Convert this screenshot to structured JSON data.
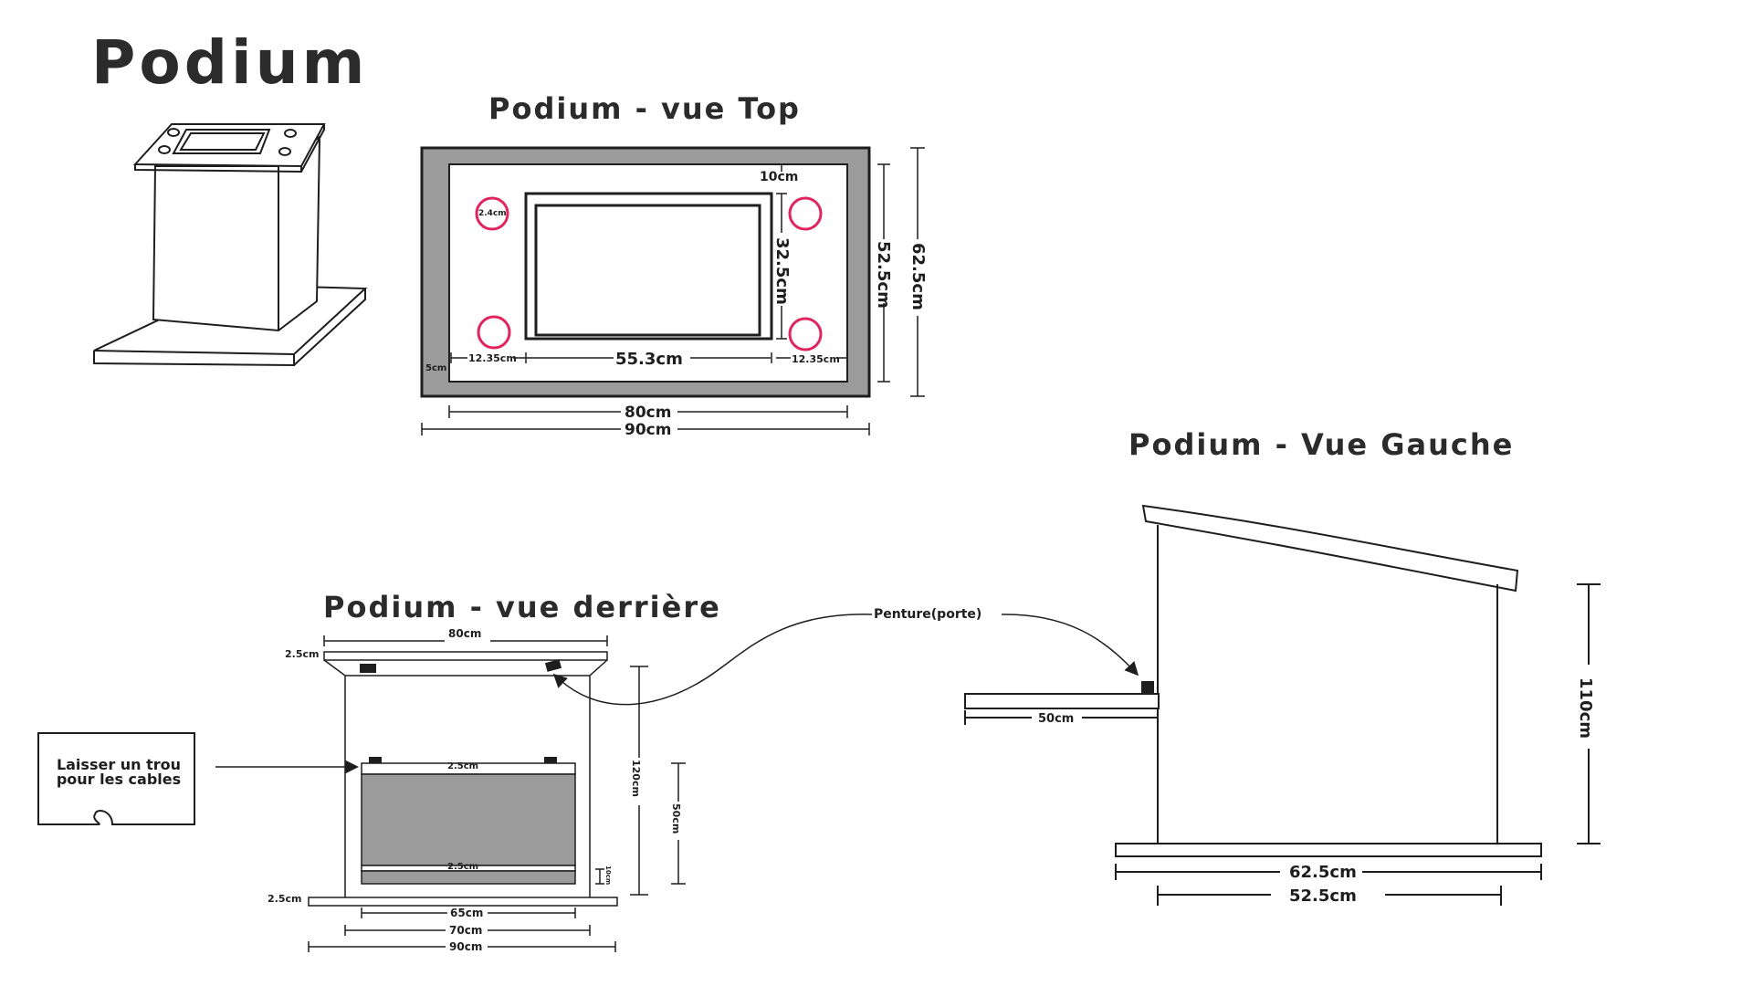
{
  "page_title": "Podium",
  "views": {
    "top": {
      "title": "Podium - vue Top"
    },
    "back": {
      "title": "Podium - vue derrière"
    },
    "left": {
      "title": "Podium - Vue Gauche"
    }
  },
  "top_dims": {
    "inner_top": "10cm",
    "hole": "2.4cm",
    "screen_height": "32.5cm",
    "inner_height": "52.5cm",
    "outer_height": "62.5cm",
    "margin_left": "12.35cm",
    "margin_right": "12.35cm",
    "screen_width": "55.3cm",
    "border": "5cm",
    "inner_width": "80cm",
    "outer_width": "90cm"
  },
  "back_dims": {
    "top_width": "80cm",
    "top_thickness": "2.5cm",
    "bottom_thickness": "2.5cm",
    "shelf_top": "2.5cm",
    "shelf_bottom": "2.5cm",
    "height": "120cm",
    "panel_height": "50cm",
    "gap": "10cm",
    "panel_width": "65cm",
    "body_width": "70cm",
    "base_width": "90cm"
  },
  "note": {
    "line1": "Laisser un trou",
    "line2": "pour les cables"
  },
  "hinge_label": "Penture(porte)",
  "left_dims": {
    "door": "50cm",
    "height": "110cm",
    "base_width": "62.5cm",
    "body_width": "52.5cm"
  },
  "colors": {
    "accent": "#e0245e",
    "panel": "#9b9b9b",
    "line": "#1e1e1e"
  }
}
